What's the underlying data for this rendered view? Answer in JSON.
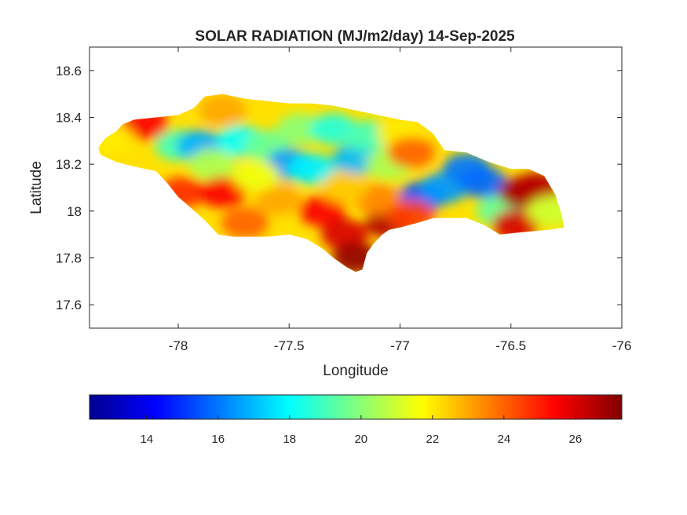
{
  "chart_data": {
    "type": "heatmap",
    "title": "SOLAR RADIATION (MJ/m2/day) 14-Sep-2025",
    "xlabel": "Longitude",
    "ylabel": "Latitude",
    "xlim": [
      -78.4,
      -76.0
    ],
    "ylim": [
      17.5,
      18.7
    ],
    "xticks": [
      -78,
      -77.5,
      -77,
      -76.5,
      -76
    ],
    "yticks": [
      17.6,
      17.8,
      18,
      18.2,
      18.4,
      18.6
    ],
    "xtick_labels": [
      "-78",
      "-77.5",
      "-77",
      "-76.5",
      "-76"
    ],
    "ytick_labels": [
      "17.6",
      "17.8",
      "18",
      "18.2",
      "18.4",
      "18.6"
    ],
    "grid": false,
    "colormap": "jet",
    "colorbar": {
      "orientation": "horizontal",
      "placement": "bottom",
      "range": [
        12.4,
        27.3
      ],
      "ticks": [
        14,
        16,
        18,
        20,
        22,
        24,
        26
      ],
      "tick_labels": [
        "14",
        "16",
        "18",
        "20",
        "22",
        "24",
        "26"
      ]
    },
    "island_outline": [
      [
        -78.36,
        18.27
      ],
      [
        -78.33,
        18.31
      ],
      [
        -78.28,
        18.34
      ],
      [
        -78.25,
        18.37
      ],
      [
        -78.2,
        18.39
      ],
      [
        -78.1,
        18.4
      ],
      [
        -78.0,
        18.41
      ],
      [
        -77.93,
        18.44
      ],
      [
        -77.88,
        18.49
      ],
      [
        -77.8,
        18.5
      ],
      [
        -77.7,
        18.48
      ],
      [
        -77.6,
        18.47
      ],
      [
        -77.5,
        18.46
      ],
      [
        -77.4,
        18.46
      ],
      [
        -77.3,
        18.45
      ],
      [
        -77.2,
        18.43
      ],
      [
        -77.1,
        18.41
      ],
      [
        -77.0,
        18.39
      ],
      [
        -76.92,
        18.38
      ],
      [
        -76.85,
        18.33
      ],
      [
        -76.8,
        18.26
      ],
      [
        -76.7,
        18.25
      ],
      [
        -76.6,
        18.21
      ],
      [
        -76.5,
        18.18
      ],
      [
        -76.42,
        18.18
      ],
      [
        -76.35,
        18.15
      ],
      [
        -76.3,
        18.07
      ],
      [
        -76.27,
        17.98
      ],
      [
        -76.26,
        17.93
      ],
      [
        -76.33,
        17.92
      ],
      [
        -76.45,
        17.91
      ],
      [
        -76.55,
        17.9
      ],
      [
        -76.62,
        17.94
      ],
      [
        -76.7,
        17.97
      ],
      [
        -76.78,
        17.97
      ],
      [
        -76.85,
        17.97
      ],
      [
        -76.92,
        17.95
      ],
      [
        -77.0,
        17.93
      ],
      [
        -77.05,
        17.92
      ],
      [
        -77.08,
        17.9
      ],
      [
        -77.12,
        17.86
      ],
      [
        -77.15,
        17.82
      ],
      [
        -77.17,
        17.75
      ],
      [
        -77.2,
        17.74
      ],
      [
        -77.24,
        17.76
      ],
      [
        -77.3,
        17.8
      ],
      [
        -77.35,
        17.84
      ],
      [
        -77.42,
        17.88
      ],
      [
        -77.5,
        17.9
      ],
      [
        -77.6,
        17.89
      ],
      [
        -77.68,
        17.89
      ],
      [
        -77.75,
        17.89
      ],
      [
        -77.82,
        17.9
      ],
      [
        -77.88,
        17.96
      ],
      [
        -77.95,
        18.02
      ],
      [
        -78.0,
        18.06
      ],
      [
        -78.05,
        18.12
      ],
      [
        -78.1,
        18.17
      ],
      [
        -78.2,
        18.19
      ],
      [
        -78.28,
        18.21
      ],
      [
        -78.35,
        18.24
      ]
    ],
    "hotspots": [
      {
        "x": -78.15,
        "y": 18.37,
        "value": 25.5
      },
      {
        "x": -78.3,
        "y": 18.3,
        "value": 22.0
      },
      {
        "x": -78.0,
        "y": 18.28,
        "value": 19.0
      },
      {
        "x": -77.9,
        "y": 18.28,
        "value": 16.8
      },
      {
        "x": -77.85,
        "y": 18.2,
        "value": 20.5
      },
      {
        "x": -77.8,
        "y": 18.43,
        "value": 23.0
      },
      {
        "x": -77.72,
        "y": 18.3,
        "value": 18.0
      },
      {
        "x": -77.6,
        "y": 18.28,
        "value": 19.5
      },
      {
        "x": -77.5,
        "y": 18.2,
        "value": 16.5
      },
      {
        "x": -77.4,
        "y": 18.18,
        "value": 17.8
      },
      {
        "x": -77.45,
        "y": 18.35,
        "value": 20.0
      },
      {
        "x": -77.3,
        "y": 18.35,
        "value": 18.5
      },
      {
        "x": -77.2,
        "y": 18.22,
        "value": 17.0
      },
      {
        "x": -77.15,
        "y": 18.32,
        "value": 19.0
      },
      {
        "x": -77.05,
        "y": 18.2,
        "value": 20.5
      },
      {
        "x": -77.0,
        "y": 18.33,
        "value": 22.0
      },
      {
        "x": -76.95,
        "y": 18.25,
        "value": 24.0
      },
      {
        "x": -76.9,
        "y": 18.06,
        "value": 15.5
      },
      {
        "x": -76.8,
        "y": 18.1,
        "value": 16.5
      },
      {
        "x": -76.7,
        "y": 18.18,
        "value": 16.0
      },
      {
        "x": -76.62,
        "y": 18.12,
        "value": 15.8
      },
      {
        "x": -76.55,
        "y": 18.0,
        "value": 19.5
      },
      {
        "x": -76.45,
        "y": 18.08,
        "value": 26.8
      },
      {
        "x": -76.38,
        "y": 18.1,
        "value": 26.5
      },
      {
        "x": -76.48,
        "y": 17.94,
        "value": 26.0
      },
      {
        "x": -76.32,
        "y": 18.0,
        "value": 21.0
      },
      {
        "x": -77.98,
        "y": 18.08,
        "value": 24.8
      },
      {
        "x": -77.8,
        "y": 18.08,
        "value": 25.5
      },
      {
        "x": -77.7,
        "y": 17.95,
        "value": 24.0
      },
      {
        "x": -77.55,
        "y": 18.05,
        "value": 23.0
      },
      {
        "x": -77.35,
        "y": 18.0,
        "value": 25.5
      },
      {
        "x": -77.25,
        "y": 17.9,
        "value": 26.0
      },
      {
        "x": -77.2,
        "y": 17.8,
        "value": 27.0
      },
      {
        "x": -77.05,
        "y": 17.95,
        "value": 26.5
      },
      {
        "x": -77.1,
        "y": 18.05,
        "value": 23.5
      },
      {
        "x": -76.95,
        "y": 17.98,
        "value": 24.5
      },
      {
        "x": -77.65,
        "y": 18.15,
        "value": 21.5
      },
      {
        "x": -77.25,
        "y": 18.1,
        "value": 22.5
      }
    ]
  }
}
